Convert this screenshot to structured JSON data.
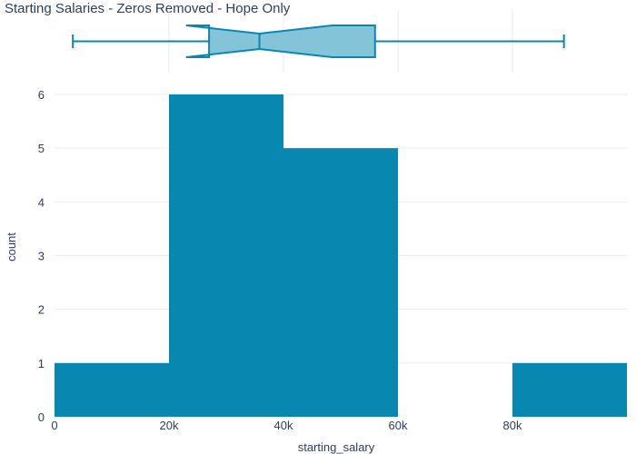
{
  "chart_data": {
    "type": "bar",
    "title": "Starting Salaries - Zeros Removed - Hope Only",
    "xlabel": "starting_salary",
    "ylabel": "count",
    "xlim": [
      0,
      100000
    ],
    "ylim": [
      0,
      6
    ],
    "x_ticks": [
      {
        "value": 0,
        "label": "0"
      },
      {
        "value": 20000,
        "label": "20k"
      },
      {
        "value": 40000,
        "label": "40k"
      },
      {
        "value": 60000,
        "label": "60k"
      },
      {
        "value": 80000,
        "label": "80k"
      }
    ],
    "y_ticks": [
      {
        "value": 0,
        "label": "0"
      },
      {
        "value": 1,
        "label": "1"
      },
      {
        "value": 2,
        "label": "2"
      },
      {
        "value": 3,
        "label": "3"
      },
      {
        "value": 4,
        "label": "4"
      },
      {
        "value": 5,
        "label": "5"
      },
      {
        "value": 6,
        "label": "6"
      }
    ],
    "bins": [
      {
        "start": 0,
        "end": 20000,
        "count": 1
      },
      {
        "start": 20000,
        "end": 40000,
        "count": 6
      },
      {
        "start": 40000,
        "end": 60000,
        "count": 5
      },
      {
        "start": 60000,
        "end": 80000,
        "count": 0
      },
      {
        "start": 80000,
        "end": 100000,
        "count": 1
      }
    ],
    "boxplot": {
      "min": 3200,
      "q1": 27000,
      "median": 35800,
      "q3": 56000,
      "max": 89000,
      "notch_low": 23000,
      "notch_high": 48500
    },
    "grid": true,
    "colors": {
      "bar": "#0887b0",
      "box_fill": "#83c4d9",
      "box_line": "#0887b0",
      "grid": "#ebebeb",
      "text": "#2a3f5f"
    }
  }
}
